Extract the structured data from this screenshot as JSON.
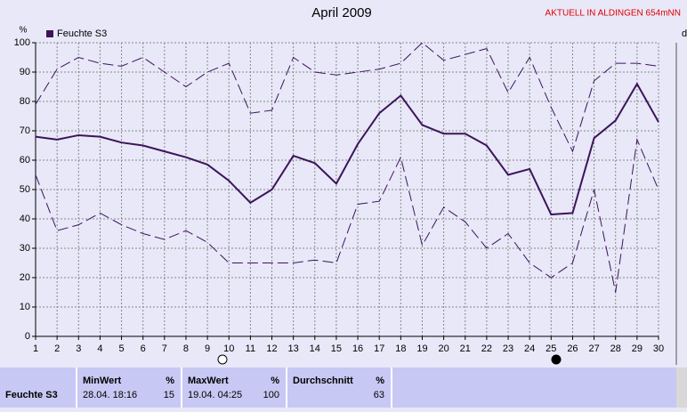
{
  "chart_data": {
    "type": "line",
    "title": "April 2009",
    "annotation": "AKTUELL IN ALDINGEN 654mNN",
    "y_label": "%",
    "right_label": "d",
    "x": [
      1,
      2,
      3,
      4,
      5,
      6,
      7,
      8,
      9,
      10,
      11,
      12,
      13,
      14,
      15,
      16,
      17,
      18,
      19,
      20,
      21,
      22,
      23,
      24,
      25,
      26,
      27,
      28,
      29,
      30
    ],
    "xlim": [
      1,
      30
    ],
    "xticks": [
      1,
      2,
      3,
      4,
      5,
      6,
      7,
      8,
      9,
      10,
      11,
      12,
      13,
      14,
      15,
      16,
      17,
      18,
      19,
      20,
      21,
      22,
      23,
      24,
      25,
      26,
      27,
      28,
      29,
      30
    ],
    "ylim": [
      0,
      100
    ],
    "yticks": [
      0,
      10,
      20,
      30,
      40,
      50,
      60,
      70,
      80,
      90,
      100
    ],
    "grid": true,
    "legend": "upper left",
    "series": [
      {
        "name": "Feuchte S3",
        "color": "#3c145a",
        "dash": false,
        "values": [
          68,
          67,
          68.5,
          68,
          66,
          65,
          63,
          61,
          58.5,
          53,
          45.5,
          50,
          61.5,
          59,
          52,
          65.5,
          76,
          82,
          72,
          69,
          69,
          65,
          55,
          57,
          41.5,
          42,
          67.5,
          73.5,
          86,
          73
        ]
      },
      {
        "color": "#3c145a",
        "dash": true,
        "values": [
          79,
          91,
          95,
          93,
          92,
          95,
          90,
          85,
          90,
          93,
          76,
          77,
          95,
          90,
          89,
          90,
          91,
          93,
          100,
          94,
          96,
          98,
          83,
          95,
          78,
          63,
          87,
          93,
          93,
          92
        ]
      },
      {
        "color": "#3c145a",
        "dash": true,
        "values": [
          55,
          36,
          38,
          42,
          38,
          35,
          33,
          36,
          32,
          25,
          25,
          25,
          25,
          26,
          25,
          45,
          46,
          61,
          31,
          44,
          39,
          30,
          35,
          25,
          20,
          25,
          50,
          15,
          67,
          50
        ]
      }
    ]
  },
  "table": {
    "row_label": "Feuchte S3",
    "columns": [
      {
        "header": "MinWert",
        "unit": "%",
        "time": "28.04.  18:16",
        "value": "15"
      },
      {
        "header": "MaxWert",
        "unit": "%",
        "time": "19.04.  04:25",
        "value": "100"
      },
      {
        "header": "Durchschnitt",
        "unit": "%",
        "value": "63"
      }
    ]
  }
}
